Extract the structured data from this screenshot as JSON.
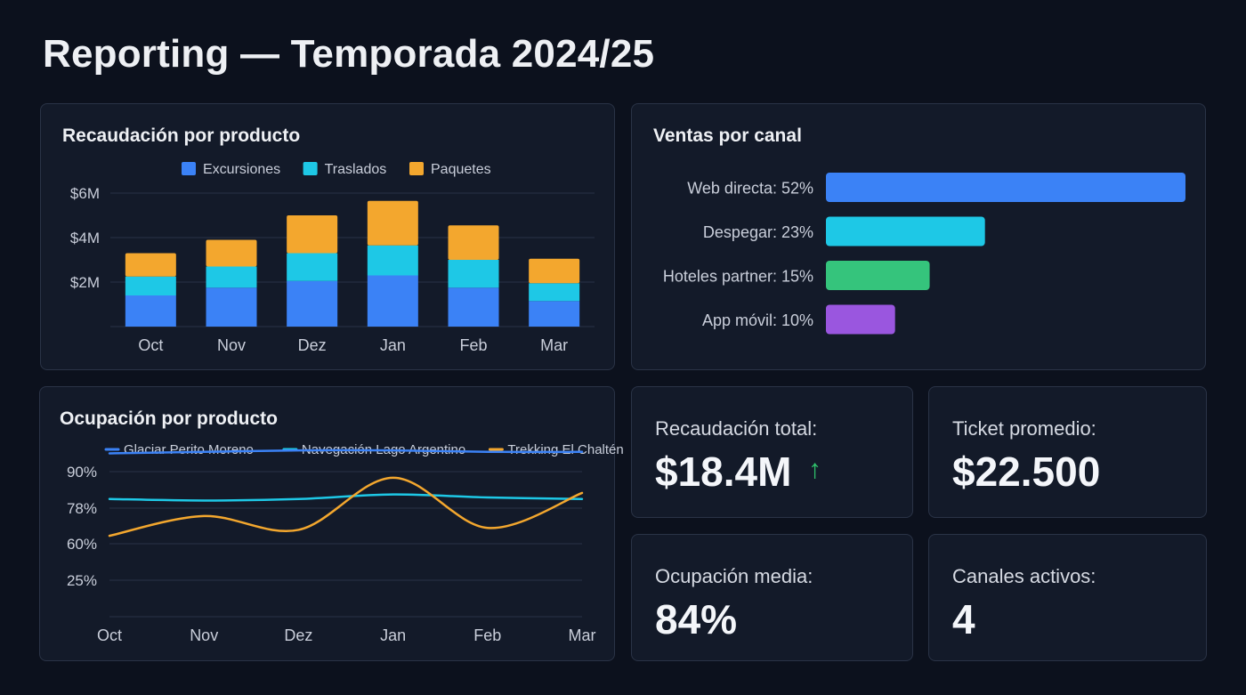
{
  "page": {
    "title": "Reporting — Temporada 2024/25"
  },
  "colors": {
    "excursiones": "#3b82f6",
    "traslados": "#1ec8e6",
    "paquetes": "#f3a72e",
    "web": "#3b82f6",
    "despegar": "#1ec8e6",
    "hoteles": "#35c47c",
    "app": "#9a56df",
    "grid": "#2a3346",
    "trend_up": "#2fc16b"
  },
  "kpis": {
    "total": {
      "label": "Recaudación total:",
      "value": "$18.4M",
      "trend_icon": "↑"
    },
    "ticket": {
      "label": "Ticket promedio:",
      "value": "$22.500"
    },
    "occupancy": {
      "label": "Ocupación media:",
      "value": "84%"
    },
    "channels": {
      "label": "Canales activos:",
      "value": "4"
    }
  },
  "chart_data": [
    {
      "type": "bar",
      "stacked": true,
      "title": "Recaudación por producto",
      "categories": [
        "Oct",
        "Nov",
        "Dez",
        "Jan",
        "Feb",
        "Mar"
      ],
      "series": [
        {
          "name": "Excursiones",
          "color": "#3b82f6",
          "values": [
            1.4,
            1.75,
            2.05,
            2.3,
            1.75,
            1.15
          ]
        },
        {
          "name": "Traslados",
          "color": "#1ec8e6",
          "values": [
            0.85,
            0.95,
            1.25,
            1.35,
            1.25,
            0.8
          ]
        },
        {
          "name": "Paquetes",
          "color": "#f3a72e",
          "values": [
            1.05,
            1.2,
            1.7,
            2.0,
            1.55,
            1.1
          ]
        }
      ],
      "ylim": [
        0,
        6
      ],
      "yticks": [
        2,
        4,
        6
      ],
      "ytick_labels": [
        "$2M",
        "$4M",
        "$6M"
      ],
      "legend": "top-center",
      "grid": true
    },
    {
      "type": "bar",
      "orientation": "horizontal",
      "title": "Ventas por canal",
      "categories": [
        "Web directa: 52%",
        "Despegar: 23%",
        "Hoteles partner: 15%",
        "App móvil: 10%"
      ],
      "values": [
        52,
        23,
        15,
        10
      ],
      "colors": [
        "#3b82f6",
        "#1ec8e6",
        "#35c47c",
        "#9a56df"
      ],
      "xlim": [
        0,
        52
      ]
    },
    {
      "type": "line",
      "title": "Ocupación por producto",
      "categories": [
        "Oct",
        "Nov",
        "Dez",
        "Jan",
        "Feb",
        "Mar"
      ],
      "series": [
        {
          "name": "Glaciar Perito Moreno",
          "color": "#3b82f6",
          "values": [
            96,
            96.5,
            97,
            97,
            96.5,
            96.5
          ]
        },
        {
          "name": "Navegación Lago Argentino",
          "color": "#1ec8e6",
          "values": [
            81,
            80.5,
            81,
            82.5,
            81.5,
            81
          ]
        },
        {
          "name": "Trekking El Chaltén",
          "color": "#f3a72e",
          "values": [
            64,
            74,
            67,
            88,
            68,
            83
          ]
        }
      ],
      "yticks": [
        25,
        60,
        78,
        90
      ],
      "ytick_labels": [
        "25%",
        "60%",
        "78%",
        "90%"
      ],
      "legend": "top-center",
      "grid": true
    }
  ]
}
